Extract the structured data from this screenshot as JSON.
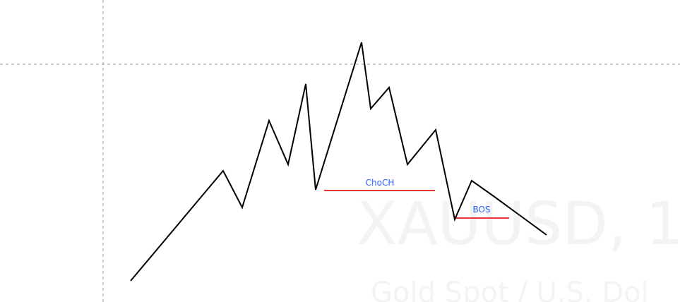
{
  "watermark": {
    "symbol": "XAUUSD, 1",
    "description": "Gold Spot / U.S. Dol"
  },
  "colors": {
    "price_line": "#000000",
    "level_line": "#e53935",
    "label_text": "#2962ff",
    "crosshair": "#9e9e9e",
    "watermark": "#f3f3f3"
  },
  "chart_data": {
    "type": "line",
    "x": [
      0,
      1,
      2,
      3,
      4,
      5,
      6,
      7,
      8,
      9,
      10,
      11,
      12,
      13,
      14,
      15,
      16
    ],
    "values": [
      10,
      54,
      44,
      70,
      54,
      90,
      42,
      106,
      82,
      88,
      52,
      71,
      37,
      51,
      23,
      38,
      0
    ],
    "levels": [
      {
        "label": "ChoCH",
        "y": 44,
        "x_from": 5.6,
        "x_to": 12.4
      },
      {
        "label": "BOS",
        "y": 23,
        "x_from": 13.3,
        "x_to": 15.6
      }
    ],
    "crosshair": {
      "x": 1,
      "y": 91
    },
    "title": "",
    "xlabel": "",
    "ylabel": ""
  }
}
